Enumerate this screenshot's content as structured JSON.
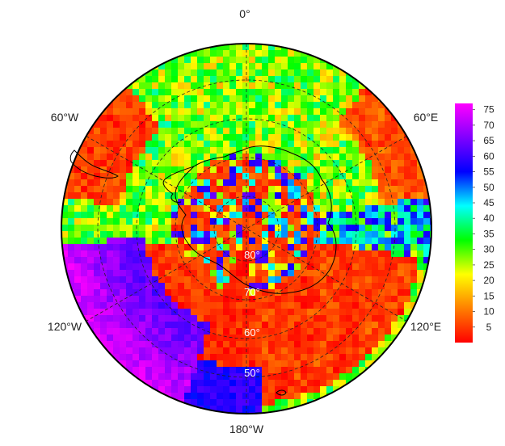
{
  "map": {
    "projection": "polar stereographic (south pole)",
    "longitude_labels": {
      "top": "0°",
      "upper_left": "60°W",
      "upper_right": "60°E",
      "lower_left": "120°W",
      "lower_right": "120°E",
      "bottom": "180°W"
    },
    "latitude_labels": [
      "80°",
      "70°",
      "60°",
      "50°"
    ],
    "colorbar": {
      "ticks": [
        "75",
        "70",
        "65",
        "60",
        "55",
        "50",
        "45",
        "40",
        "35",
        "30",
        "25",
        "20",
        "15",
        "10",
        "5"
      ],
      "min": 0,
      "max": 77,
      "colormap": [
        "#ff0000",
        "#ff7f00",
        "#ffff00",
        "#00ff00",
        "#00ffff",
        "#0000ff",
        "#8000ff",
        "#ff00ff"
      ]
    },
    "graticule": {
      "lat_circles": true,
      "meridians": true,
      "style": "dashed"
    },
    "features": [
      "Antarctica coastline",
      "South America tip"
    ]
  }
}
